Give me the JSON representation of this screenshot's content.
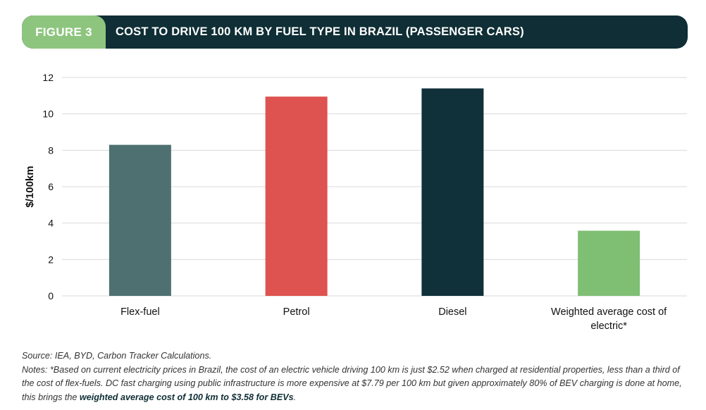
{
  "header": {
    "figure_label": "FIGURE 3",
    "title": "COST TO DRIVE 100 KM BY FUEL TYPE IN BRAZIL (PASSENGER CARS)"
  },
  "colors": {
    "banner_dark": "#0f2e35",
    "banner_tag": "#8dc57e",
    "grid": "#d9d9d9"
  },
  "chart_data": {
    "type": "bar",
    "title": "COST TO DRIVE 100 KM BY FUEL TYPE IN BRAZIL (PASSENGER CARS)",
    "xlabel": "",
    "ylabel": "$/100km",
    "ylim": [
      0,
      12
    ],
    "yticks": [
      0,
      2,
      4,
      6,
      8,
      10,
      12
    ],
    "grid": true,
    "legend": "none",
    "categories": [
      [
        "Flex-fuel"
      ],
      [
        "Petrol"
      ],
      [
        "Diesel"
      ],
      [
        "Weighted average cost of",
        "electric*"
      ]
    ],
    "values": [
      8.3,
      10.95,
      11.4,
      3.58
    ],
    "bar_colors": [
      "#4e7070",
      "#de524f",
      "#10303a",
      "#7fbf74"
    ]
  },
  "source": {
    "text": "Source: IEA, BYD, Carbon Tracker Calculations."
  },
  "notes": {
    "text": "Notes: *Based on current electricity prices in Brazil, the cost of an electric vehicle driving 100 km is just $2.52 when charged at residential properties, less than a third of the cost of flex-fuels. DC fast charging using public infrastructure is more expensive at $7.79 per 100 km but given approximately 80% of BEV charging is done at home, this brings the ",
    "emphasis": "weighted average cost of 100 km to $3.58 for BEVs",
    "end": "."
  }
}
